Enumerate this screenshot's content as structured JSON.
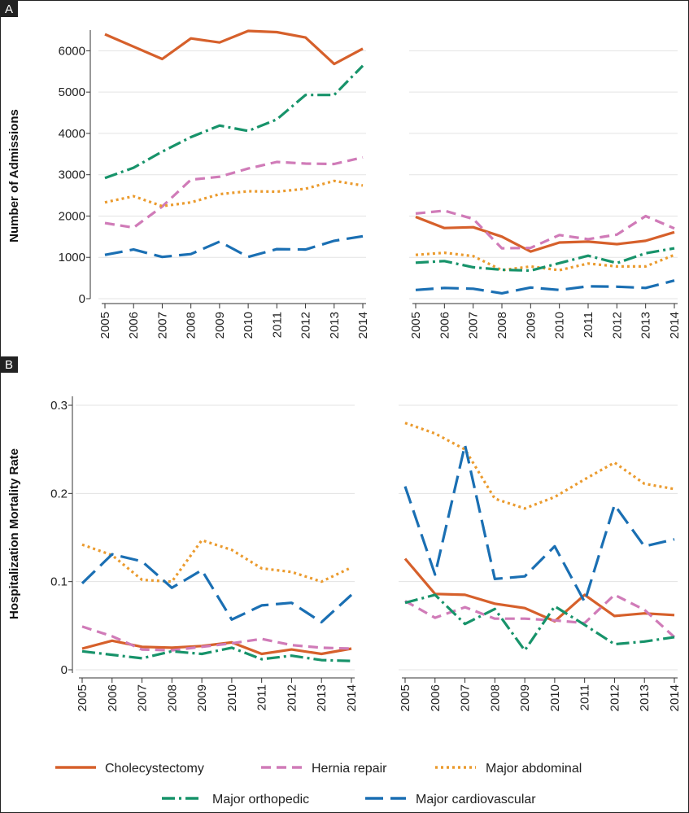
{
  "panels": [
    {
      "id": "A",
      "tag": "A",
      "ylabel": "Number of Admissions"
    },
    {
      "id": "B",
      "tag": "B",
      "ylabel": "Hospitalization Mortality Rate"
    }
  ],
  "series_styles": {
    "Cholecystectomy": {
      "color": "#d6602b",
      "dash": ""
    },
    "Hernia repair": {
      "color": "#d07bb8",
      "dash": "12,7"
    },
    "Major abdominal": {
      "color": "#eb9b2e",
      "dash": "3,4"
    },
    "Major orthopedic": {
      "color": "#17936a",
      "dash": "16,5,3,5"
    },
    "Major cardiovascular": {
      "color": "#1a6fb3",
      "dash": "22,9"
    }
  },
  "legend": [
    "Cholecystectomy",
    "Hernia repair",
    "Major abdominal",
    "Major orthopedic",
    "Major cardiovascular"
  ],
  "chart_data": [
    {
      "panel": "A",
      "type": "line",
      "subpanel": "left",
      "x": [
        2005,
        2006,
        2007,
        2008,
        2009,
        2010,
        2011,
        2012,
        2013,
        2014
      ],
      "ylim": [
        0,
        6500
      ],
      "yticks": [
        0,
        1000,
        2000,
        3000,
        4000,
        5000,
        6000
      ],
      "ylabel": "Number of Admissions",
      "grid": true,
      "series": [
        {
          "name": "Cholecystectomy",
          "values": [
            6400,
            6100,
            5800,
            6300,
            6200,
            6480,
            6450,
            6320,
            5680,
            6050
          ]
        },
        {
          "name": "Hernia repair",
          "values": [
            1830,
            1720,
            2230,
            2880,
            2950,
            3150,
            3310,
            3270,
            3260,
            3420
          ]
        },
        {
          "name": "Major abdominal",
          "values": [
            2330,
            2480,
            2240,
            2330,
            2530,
            2600,
            2590,
            2660,
            2850,
            2740
          ]
        },
        {
          "name": "Major orthopedic",
          "values": [
            2920,
            3170,
            3560,
            3910,
            4190,
            4060,
            4340,
            4930,
            4930,
            5640
          ]
        },
        {
          "name": "Major cardiovascular",
          "values": [
            1060,
            1190,
            1010,
            1080,
            1380,
            1010,
            1200,
            1190,
            1400,
            1510
          ]
        }
      ]
    },
    {
      "panel": "A",
      "type": "line",
      "subpanel": "right",
      "x": [
        2005,
        2006,
        2007,
        2008,
        2009,
        2010,
        2011,
        2012,
        2013,
        2014
      ],
      "ylim": [
        0,
        6500
      ],
      "yticks": [
        0,
        1000,
        2000,
        3000,
        4000,
        5000,
        6000
      ],
      "grid": true,
      "series": [
        {
          "name": "Cholecystectomy",
          "values": [
            1980,
            1710,
            1730,
            1500,
            1140,
            1360,
            1380,
            1320,
            1400,
            1610
          ]
        },
        {
          "name": "Hernia repair",
          "values": [
            2060,
            2130,
            1930,
            1220,
            1230,
            1540,
            1440,
            1550,
            2000,
            1700
          ]
        },
        {
          "name": "Major abdominal",
          "values": [
            1060,
            1110,
            1030,
            690,
            780,
            690,
            850,
            780,
            780,
            1060
          ]
        },
        {
          "name": "Major orthopedic",
          "values": [
            870,
            910,
            760,
            700,
            680,
            860,
            1040,
            860,
            1100,
            1220
          ]
        },
        {
          "name": "Major cardiovascular",
          "values": [
            210,
            260,
            240,
            130,
            270,
            210,
            300,
            290,
            260,
            440
          ]
        }
      ]
    },
    {
      "panel": "B",
      "type": "line",
      "subpanel": "left",
      "x": [
        2005,
        2006,
        2007,
        2008,
        2009,
        2010,
        2011,
        2012,
        2013,
        2014
      ],
      "ylim": [
        0,
        0.3
      ],
      "yticks": [
        0,
        0.1,
        0.2,
        0.3
      ],
      "ylabel": "Hospitalization Mortality Rate",
      "grid": true,
      "series": [
        {
          "name": "Cholecystectomy",
          "values": [
            0.024,
            0.033,
            0.026,
            0.025,
            0.027,
            0.031,
            0.018,
            0.023,
            0.018,
            0.024
          ]
        },
        {
          "name": "Hernia repair",
          "values": [
            0.049,
            0.038,
            0.023,
            0.022,
            0.026,
            0.03,
            0.035,
            0.028,
            0.025,
            0.024
          ]
        },
        {
          "name": "Major abdominal",
          "values": [
            0.142,
            0.13,
            0.102,
            0.1,
            0.147,
            0.136,
            0.115,
            0.111,
            0.1,
            0.116
          ]
        },
        {
          "name": "Major orthopedic",
          "values": [
            0.021,
            0.017,
            0.013,
            0.021,
            0.018,
            0.025,
            0.012,
            0.016,
            0.011,
            0.01
          ]
        },
        {
          "name": "Major cardiovascular",
          "values": [
            0.098,
            0.131,
            0.123,
            0.093,
            0.113,
            0.057,
            0.073,
            0.076,
            0.054,
            0.085
          ]
        }
      ]
    },
    {
      "panel": "B",
      "type": "line",
      "subpanel": "right",
      "x": [
        2005,
        2006,
        2007,
        2008,
        2009,
        2010,
        2011,
        2012,
        2013,
        2014
      ],
      "ylim": [
        0,
        0.3
      ],
      "yticks": [
        0,
        0.1,
        0.2,
        0.3
      ],
      "grid": true,
      "series": [
        {
          "name": "Cholecystectomy",
          "values": [
            0.126,
            0.086,
            0.085,
            0.075,
            0.07,
            0.055,
            0.085,
            0.061,
            0.064,
            0.062
          ]
        },
        {
          "name": "Hernia repair",
          "values": [
            0.078,
            0.059,
            0.071,
            0.058,
            0.058,
            0.056,
            0.053,
            0.085,
            0.068,
            0.037
          ]
        },
        {
          "name": "Major abdominal",
          "values": [
            0.28,
            0.268,
            0.25,
            0.194,
            0.183,
            0.196,
            0.216,
            0.235,
            0.211,
            0.205
          ]
        },
        {
          "name": "Major orthopedic",
          "values": [
            0.076,
            0.085,
            0.052,
            0.069,
            0.022,
            0.072,
            0.051,
            0.029,
            0.032,
            0.037
          ]
        },
        {
          "name": "Major cardiovascular",
          "values": [
            0.208,
            0.108,
            0.255,
            0.103,
            0.106,
            0.14,
            0.077,
            0.187,
            0.14,
            0.148
          ]
        }
      ]
    }
  ]
}
